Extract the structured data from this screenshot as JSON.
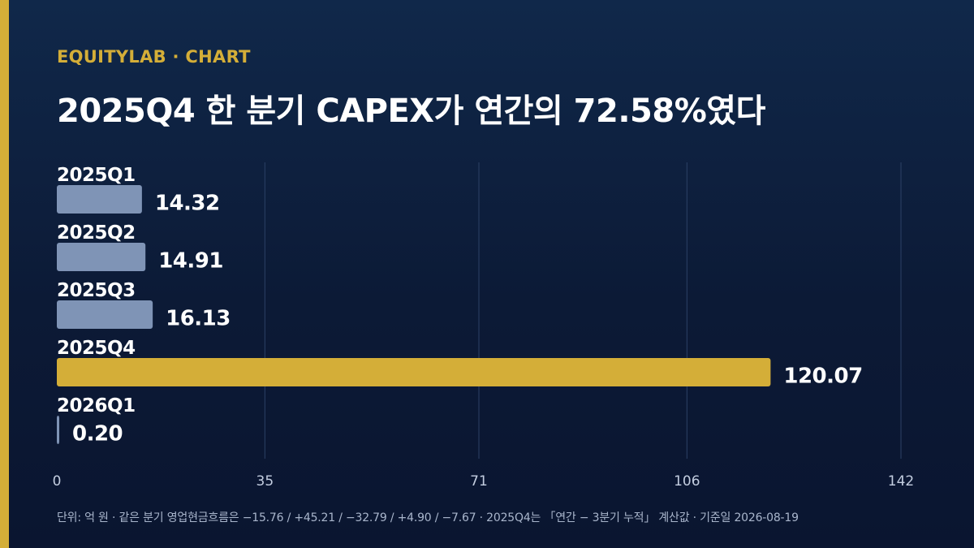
{
  "header": {
    "brand": "EQUITYLAB · CHART",
    "title": "2025Q4 한 분기 CAPEX가 연간의 72.58%였다"
  },
  "chart_data": {
    "type": "bar",
    "orientation": "horizontal",
    "categories": [
      "2025Q1",
      "2025Q2",
      "2025Q3",
      "2025Q4",
      "2026Q1"
    ],
    "values": [
      14.32,
      14.91,
      16.13,
      120.07,
      0.2
    ],
    "value_labels": [
      "14.32",
      "14.91",
      "16.13",
      "120.07",
      "0.20"
    ],
    "highlight_index": 3,
    "xlim": [
      0,
      142
    ],
    "xticks": [
      0,
      35,
      71,
      106,
      142
    ],
    "grid": true,
    "colors": {
      "bar": "#7f94b6",
      "highlight": "#d4ae38",
      "grid": "#2c4166",
      "tick_label": "#c3cde0"
    }
  },
  "footnote": "단위: 억 원 · 같은 분기 영업현금흐름은 −15.76 / +45.21 / −32.79 / +4.90 / −7.67 · 2025Q4는 「연간 − 3분기 누적」 계산값 · 기준일 2026-08-19"
}
